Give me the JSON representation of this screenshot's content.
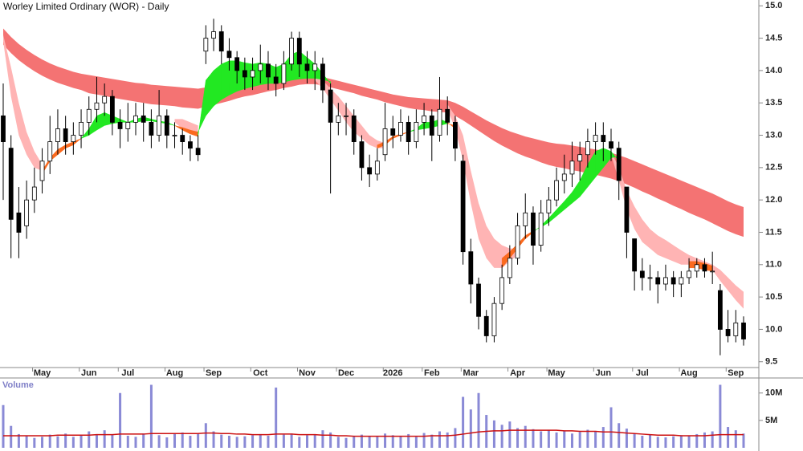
{
  "chart_data": {
    "type": "candlestick",
    "title": "Worley Limited Ordinary (WOR) - Daily",
    "categories": [
      null,
      null,
      null,
      null,
      null,
      "May",
      null,
      null,
      null,
      null,
      null,
      "Jun",
      null,
      null,
      null,
      null,
      "Jul",
      null,
      null,
      null,
      null,
      null,
      "Aug",
      null,
      null,
      null,
      null,
      "Sep",
      null,
      null,
      null,
      null,
      null,
      "Oct",
      null,
      null,
      null,
      null,
      null,
      "Nov",
      null,
      null,
      null,
      null,
      "Dec",
      null,
      null,
      null,
      null,
      null,
      "2026",
      null,
      null,
      null,
      null,
      "Feb",
      null,
      null,
      null,
      null,
      "Mar",
      null,
      null,
      null,
      null,
      null,
      "Apr",
      null,
      null,
      null,
      null,
      "May",
      null,
      null,
      null,
      null,
      null,
      "Jun",
      null,
      null,
      null,
      null,
      "Jul",
      null,
      null,
      null,
      null,
      null,
      "Aug",
      null,
      null,
      null,
      null,
      null,
      "Sep",
      null
    ],
    "open": [
      13.3,
      12.8,
      11.8,
      11.6,
      12.0,
      12.3,
      12.6,
      12.9,
      13.1,
      12.9,
      13.0,
      13.2,
      13.4,
      13.5,
      13.6,
      13.2,
      13.1,
      13.2,
      13.3,
      13.2,
      13.0,
      13.3,
      13.0,
      13.0,
      12.9,
      12.8,
      14.3,
      14.5,
      14.6,
      14.3,
      14.2,
      14.0,
      13.9,
      14.0,
      14.1,
      13.9,
      13.8,
      14.1,
      14.5,
      14.1,
      14.0,
      14.1,
      13.7,
      13.2,
      13.3,
      13.3,
      12.9,
      12.5,
      12.4,
      12.7,
      13.1,
      13.0,
      13.2,
      12.9,
      13.2,
      13.3,
      13.0,
      13.4,
      13.2,
      12.6,
      11.2,
      10.7,
      10.2,
      9.9,
      10.4,
      10.8,
      11.1,
      11.6,
      11.8,
      11.3,
      11.8,
      12.0,
      12.3,
      12.4,
      12.6,
      12.7,
      12.9,
      13.0,
      12.9,
      12.8,
      12.2,
      11.4,
      10.9,
      10.8,
      10.8,
      10.7,
      10.8,
      10.7,
      10.8,
      10.9,
      11.0,
      10.9,
      10.6,
      10.0,
      9.9,
      10.1
    ],
    "high": [
      13.8,
      13.0,
      12.2,
      12.3,
      12.5,
      12.8,
      13.3,
      13.4,
      13.3,
      13.2,
      13.4,
      13.6,
      13.9,
      13.8,
      13.7,
      13.4,
      13.5,
      13.5,
      13.5,
      13.4,
      13.7,
      13.4,
      13.2,
      13.1,
      13.0,
      13.0,
      14.7,
      14.8,
      14.7,
      14.5,
      14.3,
      14.2,
      14.2,
      14.4,
      14.3,
      14.1,
      14.3,
      14.6,
      14.6,
      14.3,
      14.3,
      14.2,
      13.8,
      13.5,
      13.5,
      13.4,
      13.0,
      12.7,
      12.8,
      13.5,
      13.3,
      13.4,
      13.3,
      13.4,
      13.5,
      13.4,
      13.9,
      13.6,
      13.3,
      12.7,
      11.4,
      10.8,
      10.3,
      10.5,
      11.0,
      11.3,
      11.8,
      12.1,
      11.9,
      12.0,
      12.2,
      12.5,
      12.7,
      12.9,
      12.9,
      13.1,
      13.2,
      13.2,
      13.1,
      12.9,
      12.2,
      11.4,
      11.1,
      11.0,
      10.9,
      11.0,
      10.9,
      10.9,
      11.1,
      11.1,
      11.1,
      11.2,
      10.7,
      10.3,
      10.3,
      10.2
    ],
    "low": [
      12.0,
      11.1,
      11.1,
      11.4,
      11.8,
      12.1,
      12.4,
      12.7,
      12.7,
      12.7,
      12.8,
      13.0,
      13.2,
      13.3,
      13.0,
      12.8,
      12.9,
      13.0,
      12.9,
      12.8,
      12.9,
      12.8,
      12.8,
      12.7,
      12.6,
      12.6,
      14.1,
      14.3,
      14.1,
      14.0,
      13.8,
      13.7,
      13.7,
      13.8,
      13.7,
      13.6,
      13.7,
      14.0,
      13.9,
      13.8,
      13.7,
      13.5,
      12.1,
      13.0,
      13.0,
      12.7,
      12.3,
      12.2,
      12.3,
      12.6,
      12.8,
      12.9,
      12.7,
      12.8,
      13.0,
      12.6,
      12.9,
      13.0,
      12.6,
      11.0,
      10.4,
      10.0,
      9.8,
      9.8,
      10.3,
      10.7,
      11.0,
      11.4,
      11.0,
      11.2,
      11.6,
      11.9,
      12.1,
      12.2,
      12.3,
      12.5,
      12.7,
      12.6,
      12.6,
      12.0,
      11.1,
      10.6,
      10.6,
      10.6,
      10.4,
      10.6,
      10.5,
      10.5,
      10.7,
      10.8,
      10.8,
      10.7,
      9.6,
      9.8,
      9.8,
      9.75
    ],
    "close": [
      12.9,
      11.7,
      11.5,
      12.0,
      12.2,
      12.6,
      12.9,
      13.1,
      12.9,
      13.0,
      13.2,
      13.4,
      13.5,
      13.6,
      13.2,
      13.1,
      13.2,
      13.3,
      13.2,
      13.0,
      13.3,
      13.0,
      13.0,
      12.9,
      12.8,
      12.7,
      14.5,
      14.6,
      14.3,
      14.2,
      14.0,
      13.9,
      14.0,
      14.1,
      13.9,
      13.8,
      14.1,
      14.5,
      14.1,
      14.0,
      14.1,
      13.7,
      13.2,
      13.3,
      13.3,
      12.9,
      12.5,
      12.4,
      12.6,
      13.1,
      13.0,
      13.2,
      12.9,
      13.2,
      13.3,
      13.0,
      13.4,
      13.2,
      12.8,
      11.2,
      10.7,
      10.2,
      9.9,
      10.4,
      10.8,
      11.1,
      11.6,
      11.8,
      11.3,
      11.8,
      12.0,
      12.3,
      12.4,
      12.6,
      12.7,
      12.9,
      13.0,
      12.9,
      12.8,
      12.3,
      11.5,
      10.9,
      10.8,
      10.8,
      10.7,
      10.8,
      10.7,
      10.8,
      10.9,
      11.0,
      10.9,
      10.9,
      10.0,
      9.9,
      10.1,
      9.85
    ],
    "up_color": "#ffffff",
    "down_color": "#000000",
    "outline_color": "#000000",
    "ylim": [
      9.41,
      15.09
    ],
    "yticks": [
      {
        "value": 15,
        "label": "15.0"
      },
      14.5,
      {
        "value": 14,
        "label": "14.0"
      },
      13.5,
      {
        "value": 13,
        "label": "13.0"
      },
      12.5,
      {
        "value": 12,
        "label": "12.0"
      },
      11.5,
      {
        "value": 11,
        "label": "11.0"
      },
      10.5,
      {
        "value": 10,
        "label": "10.0"
      },
      9.5
    ],
    "bands": [
      {
        "color": "#f47373",
        "upper": [
          14.65,
          14.52,
          14.41,
          14.32,
          14.24,
          14.17,
          14.11,
          14.06,
          14.02,
          13.98,
          13.95,
          13.93,
          13.91,
          13.89,
          13.87,
          13.85,
          13.83,
          13.81,
          13.8,
          13.78,
          13.77,
          13.76,
          13.75,
          13.74,
          13.73,
          13.72,
          13.74,
          13.76,
          13.78,
          13.8,
          13.82,
          13.84,
          13.85,
          13.87,
          13.88,
          13.89,
          13.9,
          13.91,
          13.92,
          13.92,
          13.91,
          13.9,
          13.87,
          13.84,
          13.81,
          13.78,
          13.75,
          13.72,
          13.69,
          13.66,
          13.63,
          13.61,
          13.59,
          13.58,
          13.57,
          13.56,
          13.55,
          13.54,
          13.5,
          13.44,
          13.37,
          13.3,
          13.23,
          13.17,
          13.11,
          13.06,
          13.02,
          12.98,
          12.95,
          12.92,
          12.89,
          12.87,
          12.86,
          12.84,
          12.82,
          12.8,
          12.78,
          12.76,
          12.73,
          12.69,
          12.65,
          12.6,
          12.55,
          12.5,
          12.45,
          12.4,
          12.35,
          12.3,
          12.25,
          12.2,
          12.15,
          12.1,
          12.04,
          11.98,
          11.93,
          11.89
        ],
        "lower": [
          14.4,
          14.27,
          14.16,
          14.07,
          13.99,
          13.92,
          13.86,
          13.81,
          13.77,
          13.73,
          13.7,
          13.65,
          13.63,
          13.61,
          13.58,
          13.56,
          13.54,
          13.52,
          13.5,
          13.48,
          13.47,
          13.46,
          13.45,
          13.43,
          13.42,
          13.41,
          13.44,
          13.47,
          13.5,
          13.53,
          13.57,
          13.6,
          13.62,
          13.65,
          13.68,
          13.7,
          13.73,
          13.75,
          13.78,
          13.79,
          13.79,
          13.77,
          13.74,
          13.71,
          13.68,
          13.65,
          13.61,
          13.58,
          13.55,
          13.51,
          13.48,
          13.45,
          13.42,
          13.4,
          13.39,
          13.37,
          13.36,
          13.35,
          13.3,
          13.23,
          13.15,
          13.07,
          12.99,
          12.91,
          12.84,
          12.78,
          12.72,
          12.67,
          12.63,
          12.58,
          12.54,
          12.51,
          12.49,
          12.46,
          12.44,
          12.41,
          12.39,
          12.36,
          12.33,
          12.29,
          12.24,
          12.19,
          12.13,
          12.08,
          12.02,
          11.97,
          11.91,
          11.86,
          11.8,
          11.75,
          11.7,
          11.64,
          11.58,
          11.52,
          11.47,
          11.43
        ]
      },
      {
        "color": "#ffb4b4",
        "upper": [
          14.55,
          14.05,
          13.5,
          13.05,
          12.75,
          12.55,
          null,
          null,
          null,
          null,
          null,
          null,
          null,
          null,
          null,
          null,
          null,
          null,
          null,
          null,
          null,
          null,
          13.25,
          13.25,
          13.2,
          13.15,
          null,
          null,
          null,
          null,
          null,
          null,
          null,
          null,
          null,
          null,
          null,
          null,
          null,
          null,
          13.92,
          13.85,
          13.72,
          13.6,
          13.45,
          13.3,
          13.15,
          13.0,
          12.92,
          12.88,
          null,
          null,
          null,
          null,
          null,
          null,
          null,
          13.48,
          13.3,
          13.0,
          12.45,
          11.95,
          11.6,
          11.4,
          11.3,
          11.25,
          11.25,
          null,
          null,
          null,
          null,
          null,
          null,
          null,
          null,
          null,
          null,
          null,
          12.75,
          12.5,
          12.15,
          11.9,
          11.7,
          11.55,
          11.45,
          11.38,
          11.3,
          11.22,
          11.15,
          11.1,
          11.05,
          11.0,
          10.92,
          10.8,
          10.68,
          10.58
        ],
        "lower": [
          14.45,
          13.6,
          13.0,
          12.7,
          12.5,
          12.45,
          null,
          null,
          null,
          null,
          null,
          null,
          null,
          null,
          null,
          null,
          null,
          null,
          null,
          null,
          null,
          null,
          13.2,
          13.1,
          13.05,
          13.0,
          null,
          null,
          null,
          null,
          null,
          null,
          null,
          null,
          null,
          null,
          null,
          null,
          null,
          null,
          13.85,
          13.72,
          13.55,
          13.38,
          13.2,
          13.05,
          12.95,
          12.85,
          12.8,
          12.8,
          null,
          null,
          null,
          null,
          null,
          null,
          null,
          13.4,
          13.1,
          12.6,
          11.95,
          11.4,
          11.1,
          10.95,
          10.95,
          11.05,
          11.15,
          null,
          null,
          null,
          null,
          null,
          null,
          null,
          null,
          null,
          null,
          null,
          12.7,
          12.3,
          11.85,
          11.55,
          11.35,
          11.25,
          11.15,
          11.1,
          11.05,
          11.0,
          11.0,
          11.0,
          10.98,
          10.92,
          10.75,
          10.6,
          10.45,
          10.32
        ]
      }
    ],
    "ribbon": {
      "up_color": "#22e822",
      "down_color": "#fb6a1e",
      "fast": [
        null,
        null,
        null,
        null,
        null,
        12.4,
        12.6,
        12.7,
        12.8,
        12.85,
        12.95,
        13.1,
        13.3,
        13.35,
        13.3,
        13.25,
        13.2,
        13.25,
        13.28,
        13.25,
        13.22,
        13.2,
        13.15,
        13.08,
        13.02,
        12.98,
        13.85,
        14.0,
        14.1,
        14.15,
        14.15,
        14.12,
        14.1,
        14.12,
        14.1,
        14.05,
        14.1,
        14.25,
        14.3,
        14.2,
        14.1,
        13.95,
        13.8,
        null,
        null,
        null,
        null,
        null,
        12.8,
        12.85,
        12.95,
        13.0,
        13.05,
        13.1,
        13.2,
        13.2,
        13.25,
        13.2,
        13.1,
        null,
        null,
        null,
        null,
        null,
        10.95,
        11.1,
        11.25,
        11.4,
        11.5,
        11.6,
        11.72,
        11.85,
        11.98,
        12.12,
        12.3,
        12.55,
        12.75,
        12.8,
        12.75,
        12.6,
        null,
        null,
        null,
        null,
        null,
        null,
        null,
        null,
        10.95,
        10.95,
        10.92,
        10.9,
        null,
        null,
        null,
        null
      ],
      "slow": [
        null,
        null,
        null,
        null,
        null,
        12.45,
        12.65,
        12.78,
        12.85,
        12.9,
        12.95,
        13.0,
        13.08,
        13.15,
        13.18,
        13.2,
        13.2,
        13.2,
        13.22,
        13.22,
        13.2,
        13.18,
        13.15,
        13.12,
        13.08,
        13.05,
        13.3,
        13.45,
        13.55,
        13.62,
        13.68,
        13.72,
        13.75,
        13.78,
        13.8,
        13.8,
        13.82,
        13.85,
        13.87,
        13.88,
        13.88,
        13.86,
        13.83,
        null,
        null,
        null,
        null,
        null,
        12.85,
        12.9,
        12.98,
        13.02,
        13.05,
        13.08,
        13.1,
        13.12,
        13.15,
        13.18,
        13.15,
        null,
        null,
        null,
        null,
        null,
        11.1,
        11.2,
        11.32,
        11.45,
        11.52,
        11.58,
        11.65,
        11.75,
        11.85,
        11.95,
        12.05,
        12.2,
        12.35,
        12.5,
        12.65,
        12.68,
        null,
        null,
        null,
        null,
        null,
        null,
        null,
        null,
        11.05,
        11.05,
        11.02,
        10.98,
        null,
        null,
        null,
        null
      ]
    },
    "volume": {
      "label": "Volume",
      "color": "#8a8ad6",
      "ma_color": "#cc1010",
      "values": [
        7.8,
        4.0,
        2.5,
        2.2,
        1.8,
        2.0,
        2.4,
        2.1,
        2.6,
        2.0,
        2.3,
        3.0,
        2.5,
        3.2,
        2.4,
        10.0,
        2.2,
        2.0,
        2.6,
        11.5,
        2.3,
        1.9,
        2.5,
        2.8,
        2.2,
        2.6,
        4.5,
        3.0,
        2.4,
        2.2,
        2.0,
        2.1,
        2.3,
        2.5,
        2.2,
        11.0,
        2.4,
        2.6,
        2.0,
        2.3,
        2.5,
        3.2,
        2.8,
        2.0,
        1.8,
        2.2,
        2.4,
        2.1,
        2.0,
        2.6,
        2.3,
        2.2,
        2.5,
        2.0,
        2.7,
        2.4,
        3.0,
        2.8,
        3.6,
        9.3,
        7.0,
        10.0,
        6.0,
        5.0,
        4.2,
        4.8,
        3.6,
        4.0,
        3.4,
        3.0,
        3.2,
        2.8,
        3.1,
        2.6,
        2.9,
        3.3,
        3.0,
        3.8,
        7.4,
        4.5,
        3.5,
        2.6,
        2.2,
        2.4,
        2.0,
        1.9,
        2.1,
        2.3,
        2.2,
        2.5,
        2.8,
        3.0,
        11.5,
        3.8,
        3.2,
        2.6
      ],
      "ma": [
        2.2,
        2.2,
        2.2,
        2.2,
        2.2,
        2.2,
        2.2,
        2.3,
        2.3,
        2.3,
        2.3,
        2.3,
        2.4,
        2.4,
        2.4,
        2.5,
        2.5,
        2.5,
        2.5,
        2.6,
        2.6,
        2.6,
        2.6,
        2.6,
        2.6,
        2.6,
        2.7,
        2.7,
        2.6,
        2.6,
        2.5,
        2.5,
        2.4,
        2.4,
        2.4,
        2.5,
        2.5,
        2.5,
        2.4,
        2.4,
        2.4,
        2.3,
        2.3,
        2.2,
        2.2,
        2.1,
        2.1,
        2.1,
        2.1,
        2.1,
        2.1,
        2.1,
        2.1,
        2.1,
        2.1,
        2.2,
        2.2,
        2.2,
        2.3,
        2.5,
        2.7,
        2.9,
        3.0,
        3.1,
        3.1,
        3.2,
        3.2,
        3.2,
        3.2,
        3.2,
        3.2,
        3.2,
        3.1,
        3.1,
        3.0,
        3.0,
        3.0,
        2.9,
        2.9,
        2.8,
        2.7,
        2.6,
        2.5,
        2.4,
        2.3,
        2.3,
        2.3,
        2.2,
        2.2,
        2.2,
        2.2,
        2.3,
        2.4,
        2.4,
        2.4,
        2.4
      ],
      "ylim": [
        0,
        12.6
      ],
      "yticks": [
        {
          "value": 5,
          "label": "5M"
        },
        {
          "value": 10,
          "label": "10M"
        }
      ]
    }
  }
}
